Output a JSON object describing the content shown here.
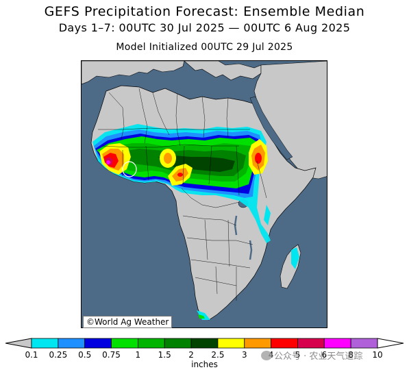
{
  "title": "GEFS Precipitation Forecast: Ensemble Median",
  "subtitle": "Days 1–7: 00UTC 30 Jul 2025 — 00UTC 6 Aug 2025",
  "initialized": "Model Initialized 00UTC 29 Jul 2025",
  "credit": "©World Ag Weather",
  "colorbar": {
    "units": "inches",
    "labels": [
      "0.1",
      "0.25",
      "0.5",
      "0.75",
      "1",
      "1.5",
      "2",
      "2.5",
      "3",
      "4",
      "5",
      "6",
      "8",
      "10"
    ],
    "colors": [
      "#00e6f0",
      "#1e90ff",
      "#0000e0",
      "#00e000",
      "#00b400",
      "#008200",
      "#004400",
      "#ffff00",
      "#ff9900",
      "#ff0000",
      "#d6004d",
      "#ff00ff",
      "#b060d8"
    ],
    "under_color": "#c8c8c8",
    "over_color": "#ffffff"
  },
  "map_colors": {
    "ocean": "#4d6a87",
    "land": "#c8c8c8",
    "border": "#000000"
  },
  "watermark": "公众号 · 农业天气道踪"
}
